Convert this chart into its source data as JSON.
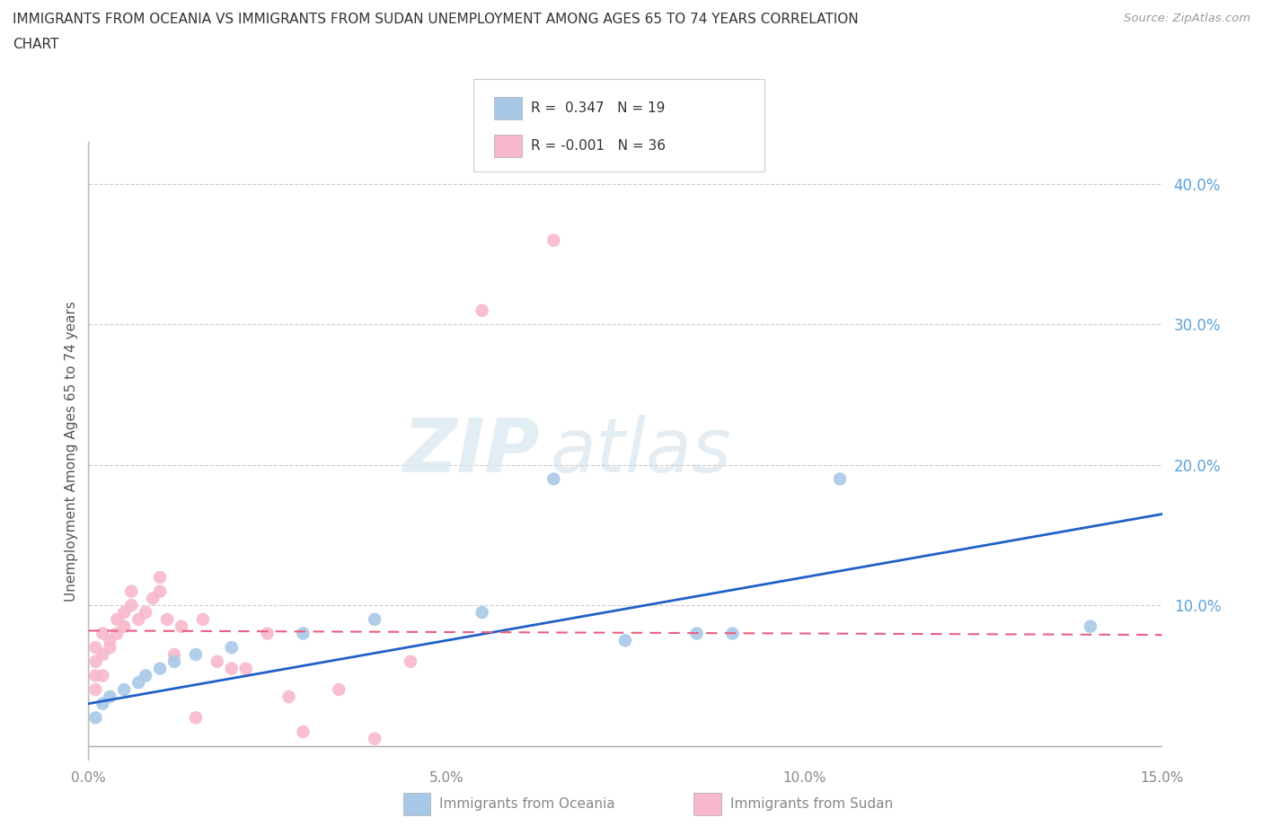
{
  "title_line1": "IMMIGRANTS FROM OCEANIA VS IMMIGRANTS FROM SUDAN UNEMPLOYMENT AMONG AGES 65 TO 74 YEARS CORRELATION",
  "title_line2": "CHART",
  "source": "Source: ZipAtlas.com",
  "ylabel": "Unemployment Among Ages 65 to 74 years",
  "legend_label_1": "Immigrants from Oceania",
  "legend_label_2": "Immigrants from Sudan",
  "R1": 0.347,
  "N1": 19,
  "R2": -0.001,
  "N2": 36,
  "xlim": [
    0.0,
    0.15
  ],
  "ylim": [
    -0.01,
    0.43
  ],
  "xticks": [
    0.0,
    0.05,
    0.1,
    0.15
  ],
  "yticks": [
    0.0,
    0.1,
    0.2,
    0.3,
    0.4
  ],
  "ytick_labels": [
    "",
    "10.0%",
    "20.0%",
    "30.0%",
    "40.0%"
  ],
  "xtick_labels": [
    "0.0%",
    "5.0%",
    "10.0%",
    "15.0%"
  ],
  "color_oceania": "#a8c8e8",
  "color_sudan": "#f8b8cc",
  "color_line_oceania": "#2060c8",
  "color_line_sudan": "#e86080",
  "bg_color": "#ffffff",
  "watermark_zip": "ZIP",
  "watermark_atlas": "atlas",
  "oceania_x": [
    0.001,
    0.002,
    0.003,
    0.005,
    0.007,
    0.008,
    0.01,
    0.012,
    0.015,
    0.02,
    0.03,
    0.04,
    0.055,
    0.065,
    0.075,
    0.085,
    0.09,
    0.105,
    0.14
  ],
  "oceania_y": [
    0.02,
    0.03,
    0.035,
    0.04,
    0.045,
    0.05,
    0.055,
    0.06,
    0.065,
    0.07,
    0.08,
    0.09,
    0.095,
    0.19,
    0.075,
    0.08,
    0.08,
    0.19,
    0.085
  ],
  "sudan_x": [
    0.001,
    0.001,
    0.001,
    0.001,
    0.002,
    0.002,
    0.002,
    0.003,
    0.003,
    0.004,
    0.004,
    0.005,
    0.005,
    0.006,
    0.006,
    0.007,
    0.008,
    0.009,
    0.01,
    0.01,
    0.011,
    0.012,
    0.013,
    0.015,
    0.016,
    0.018,
    0.02,
    0.022,
    0.025,
    0.028,
    0.03,
    0.035,
    0.04,
    0.045,
    0.055,
    0.065
  ],
  "sudan_y": [
    0.04,
    0.05,
    0.06,
    0.07,
    0.05,
    0.065,
    0.08,
    0.07,
    0.075,
    0.08,
    0.09,
    0.085,
    0.095,
    0.1,
    0.11,
    0.09,
    0.095,
    0.105,
    0.11,
    0.12,
    0.09,
    0.065,
    0.085,
    0.02,
    0.09,
    0.06,
    0.055,
    0.055,
    0.08,
    0.035,
    0.01,
    0.04,
    0.005,
    0.06,
    0.31,
    0.36
  ]
}
